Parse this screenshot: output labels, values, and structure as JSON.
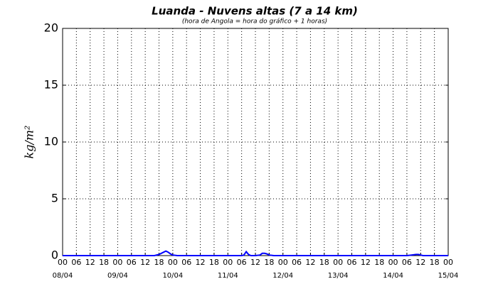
{
  "chart_data": {
    "type": "line",
    "title": "Luanda - Nuvens altas (7 a 14 km)",
    "subtitle": "(hora de Angola = hora do gráfico + 1 horas)",
    "y_label": "kg/m²",
    "x": [
      0,
      40,
      42,
      43,
      44,
      45,
      46,
      47,
      48,
      50,
      78,
      79,
      80,
      81,
      82,
      84,
      86,
      87,
      88,
      89,
      90,
      92,
      150,
      152,
      154,
      155,
      156,
      157,
      168
    ],
    "series": [
      {
        "name": "Nuvens altas",
        "color": "#0000ff",
        "values": [
          0,
          0,
          0.1,
          0.2,
          0.3,
          0.4,
          0.3,
          0.15,
          0.05,
          0,
          0,
          0.05,
          0.35,
          0.1,
          0,
          0,
          0.05,
          0.2,
          0.2,
          0.15,
          0.05,
          0,
          0,
          0.05,
          0.1,
          0.1,
          0.05,
          0,
          0
        ]
      }
    ],
    "xlim": [
      0,
      168
    ],
    "ylim": [
      0,
      20
    ],
    "yticks": [
      0,
      5,
      10,
      15,
      20
    ],
    "xticks": [
      {
        "value": 0,
        "label": "00"
      },
      {
        "value": 6,
        "label": "06"
      },
      {
        "value": 12,
        "label": "12"
      },
      {
        "value": 18,
        "label": "18"
      },
      {
        "value": 24,
        "label": "00"
      },
      {
        "value": 30,
        "label": "06"
      },
      {
        "value": 36,
        "label": "12"
      },
      {
        "value": 42,
        "label": "18"
      },
      {
        "value": 48,
        "label": "00"
      },
      {
        "value": 54,
        "label": "06"
      },
      {
        "value": 60,
        "label": "12"
      },
      {
        "value": 66,
        "label": "18"
      },
      {
        "value": 72,
        "label": "00"
      },
      {
        "value": 78,
        "label": "06"
      },
      {
        "value": 84,
        "label": "12"
      },
      {
        "value": 90,
        "label": "18"
      },
      {
        "value": 96,
        "label": "00"
      },
      {
        "value": 102,
        "label": "06"
      },
      {
        "value": 108,
        "label": "12"
      },
      {
        "value": 114,
        "label": "18"
      },
      {
        "value": 120,
        "label": "00"
      },
      {
        "value": 126,
        "label": "06"
      },
      {
        "value": 132,
        "label": "12"
      },
      {
        "value": 138,
        "label": "18"
      },
      {
        "value": 144,
        "label": "00"
      },
      {
        "value": 150,
        "label": "06"
      },
      {
        "value": 156,
        "label": "12"
      },
      {
        "value": 162,
        "label": "18"
      },
      {
        "value": 168,
        "label": "00"
      }
    ],
    "date_labels": [
      {
        "value": 0,
        "label": "08/04"
      },
      {
        "value": 24,
        "label": "09/04"
      },
      {
        "value": 48,
        "label": "10/04"
      },
      {
        "value": 72,
        "label": "11/04"
      },
      {
        "value": 96,
        "label": "12/04"
      },
      {
        "value": 120,
        "label": "13/04"
      },
      {
        "value": 144,
        "label": "14/04"
      },
      {
        "value": 168,
        "label": "15/04"
      }
    ],
    "grid": true
  }
}
